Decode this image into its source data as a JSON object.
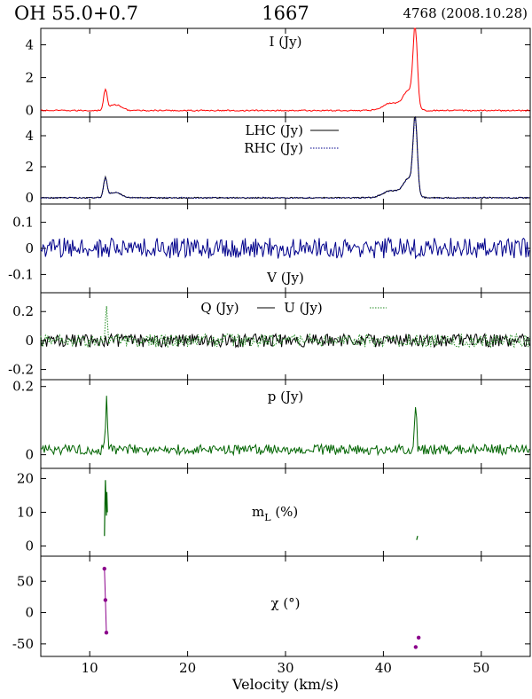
{
  "header": {
    "source": "OH 55.0+0.7",
    "frequency": "1667",
    "epoch": "4768 (2008.10.28)"
  },
  "chart_data": {
    "type": "line",
    "xlabel": "Velocity (km/s)",
    "xlim": [
      5,
      55
    ],
    "xticks": [
      "10",
      "20",
      "30",
      "40",
      "50"
    ],
    "xtick_values": [
      10,
      20,
      30,
      40,
      50
    ],
    "colors": {
      "stokes_i": "#ff0000",
      "lhc": "#000000",
      "rhc": "#00008b",
      "stokes_v": "#00008b",
      "stokes_q": "#000000",
      "stokes_u": "#228b22",
      "p": "#006400",
      "m_l": "#006400",
      "chi": "#8b008b"
    },
    "panels": [
      {
        "id": "stokes-i",
        "label": "I (Jy)",
        "ylim": [
          -0.4,
          5
        ],
        "yticks": [
          "0",
          "2",
          "4"
        ],
        "ytick_values": [
          0,
          2,
          4
        ],
        "series": [
          {
            "name": "I",
            "style": "solid",
            "features": [
              {
                "center": 11.6,
                "peak": 1.2,
                "width": 0.25
              },
              {
                "center": 12.6,
                "peak": 0.35,
                "width": 0.9
              },
              {
                "center": 40.8,
                "peak": 0.45,
                "width": 1.2
              },
              {
                "center": 42.6,
                "peak": 1.2,
                "width": 0.8
              },
              {
                "center": 43.25,
                "peak": 4.7,
                "width": 0.3
              }
            ],
            "noise": 0.04
          }
        ]
      },
      {
        "id": "lhc-rhc",
        "label_lines": [
          "LHC (Jy)",
          "RHC (Jy)"
        ],
        "ylim": [
          -0.4,
          5.2
        ],
        "yticks": [
          "0",
          "2",
          "4"
        ],
        "ytick_values": [
          0,
          2,
          4
        ],
        "series": [
          {
            "name": "LHC",
            "style": "solid",
            "features": [
              {
                "center": 11.6,
                "peak": 1.25,
                "width": 0.25
              },
              {
                "center": 12.6,
                "peak": 0.35,
                "width": 0.9
              },
              {
                "center": 40.8,
                "peak": 0.45,
                "width": 1.2
              },
              {
                "center": 42.6,
                "peak": 1.2,
                "width": 0.8
              },
              {
                "center": 43.25,
                "peak": 4.8,
                "width": 0.3
              }
            ],
            "noise": 0.04
          },
          {
            "name": "RHC",
            "style": "dotted",
            "features": [
              {
                "center": 11.6,
                "peak": 1.2,
                "width": 0.25
              },
              {
                "center": 12.6,
                "peak": 0.35,
                "width": 0.9
              },
              {
                "center": 40.8,
                "peak": 0.45,
                "width": 1.2
              },
              {
                "center": 42.6,
                "peak": 1.2,
                "width": 0.8
              },
              {
                "center": 43.25,
                "peak": 4.6,
                "width": 0.3
              }
            ],
            "noise": 0.04
          }
        ]
      },
      {
        "id": "stokes-v",
        "label": "V (Jy)",
        "ylim": [
          -0.17,
          0.17
        ],
        "yticks": [
          "0.1",
          "0",
          "-0.1"
        ],
        "ytick_values": [
          0.1,
          0,
          -0.1
        ],
        "series": [
          {
            "name": "V",
            "style": "solid",
            "features": [],
            "noise": 0.04
          }
        ]
      },
      {
        "id": "stokes-q-u",
        "label_parts": [
          "Q (Jy)",
          "U (Jy)"
        ],
        "ylim": [
          -0.27,
          0.33
        ],
        "yticks": [
          "0.2",
          "0",
          "-0.2"
        ],
        "ytick_values": [
          0.2,
          0,
          -0.2
        ],
        "series": [
          {
            "name": "Q",
            "style": "solid",
            "features": [],
            "noise": 0.045
          },
          {
            "name": "U",
            "style": "dotted",
            "features": [
              {
                "center": 11.7,
                "peak": 0.22,
                "width": 0.15
              }
            ],
            "noise": 0.045
          }
        ]
      },
      {
        "id": "linear-pol",
        "label": "p (Jy)",
        "ylim": [
          -0.04,
          0.22
        ],
        "yticks": [
          "0.2",
          "0"
        ],
        "ytick_values": [
          0.2,
          0
        ],
        "series": [
          {
            "name": "p",
            "style": "solid",
            "features": [
              {
                "center": 11.7,
                "peak": 0.17,
                "width": 0.15
              },
              {
                "center": 43.3,
                "peak": 0.15,
                "width": 0.15
              }
            ],
            "noise": 0.03,
            "positive": true
          }
        ]
      },
      {
        "id": "frac-pol",
        "label_main": "m",
        "label_sub": "L",
        "label_tail": " (%)",
        "ylim": [
          -3,
          23
        ],
        "yticks": [
          "20",
          "10",
          "0"
        ],
        "ytick_values": [
          20,
          10,
          0
        ],
        "points": [
          {
            "x": 11.5,
            "y": 3
          },
          {
            "x": 11.55,
            "y": 12
          },
          {
            "x": 11.6,
            "y": 19.5
          },
          {
            "x": 11.65,
            "y": 14
          },
          {
            "x": 11.7,
            "y": 9
          },
          {
            "x": 11.75,
            "y": 16
          },
          {
            "x": 11.8,
            "y": 10
          },
          {
            "x": 43.4,
            "y": 1.8
          },
          {
            "x": 43.5,
            "y": 3
          }
        ]
      },
      {
        "id": "pol-angle",
        "label": "χ (°)",
        "ylim": [
          -70,
          90
        ],
        "yticks": [
          "50",
          "0",
          "-50"
        ],
        "ytick_values": [
          50,
          0,
          -50
        ],
        "points": [
          {
            "x": 11.5,
            "y": 70
          },
          {
            "x": 11.6,
            "y": 20
          },
          {
            "x": 11.7,
            "y": -32
          },
          {
            "x": 43.3,
            "y": -55
          },
          {
            "x": 43.6,
            "y": -40
          }
        ]
      }
    ]
  }
}
